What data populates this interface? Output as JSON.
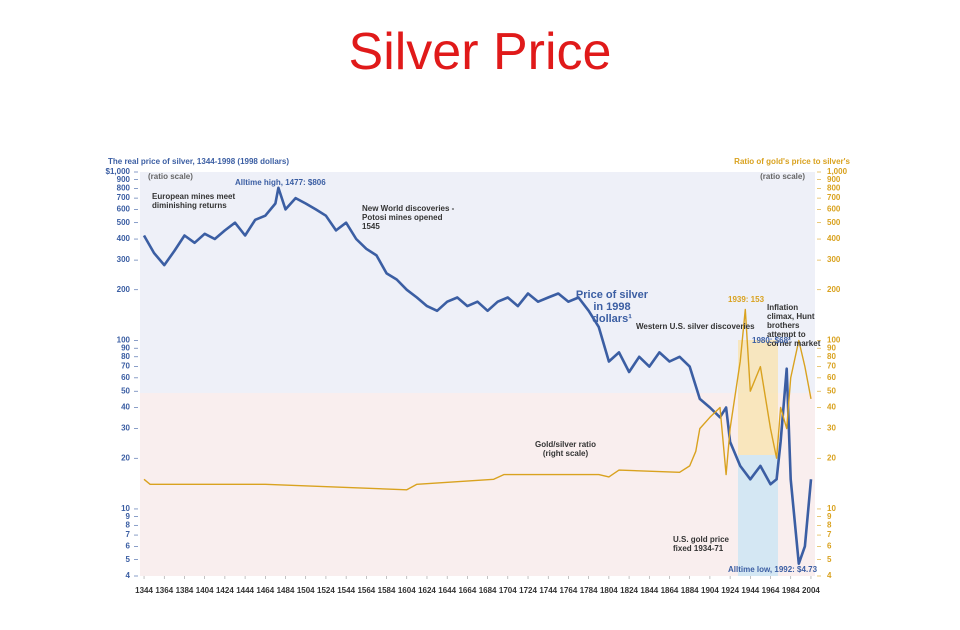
{
  "title": "Silver Price",
  "chart_data": {
    "type": "line",
    "y_label": "The real price of silver, 1344-1998 (1998 dollars)",
    "y2_label": "Ratio of gold's price to silver's",
    "y_scale_note": "(ratio scale)",
    "y2_scale_note": "(ratio scale)",
    "log_scale": true,
    "xlim": [
      1340,
      2008
    ],
    "xticks": [
      1344,
      1364,
      1384,
      1404,
      1424,
      1444,
      1464,
      1484,
      1504,
      1524,
      1544,
      1564,
      1584,
      1604,
      1624,
      1644,
      1664,
      1684,
      1704,
      1724,
      1744,
      1764,
      1784,
      1804,
      1824,
      1844,
      1864,
      1884,
      1904,
      1924,
      1944,
      1964,
      1984,
      2004
    ],
    "ylim": [
      4,
      1000
    ],
    "yticks": [
      {
        "value": 1000,
        "label": "$1,000"
      },
      900,
      800,
      700,
      600,
      500,
      400,
      300,
      200,
      100,
      90,
      80,
      70,
      60,
      50,
      40,
      30,
      20,
      10,
      9,
      8,
      7,
      6,
      5,
      4
    ],
    "y2lim": [
      4,
      1000
    ],
    "y2ticks": [
      {
        "value": 1000,
        "label": "1,000"
      },
      900,
      800,
      700,
      600,
      500,
      400,
      300,
      200,
      100,
      90,
      80,
      70,
      60,
      50,
      40,
      30,
      20,
      10,
      9,
      8,
      7,
      6,
      5,
      4
    ],
    "series": [
      {
        "name": "Price of silver in 1998 dollars¹",
        "color": "#3b5ea3",
        "x": [
          1344,
          1354,
          1364,
          1374,
          1384,
          1394,
          1404,
          1414,
          1424,
          1434,
          1444,
          1454,
          1464,
          1474,
          1477,
          1484,
          1494,
          1504,
          1514,
          1524,
          1534,
          1544,
          1554,
          1564,
          1574,
          1584,
          1594,
          1604,
          1614,
          1624,
          1634,
          1644,
          1654,
          1664,
          1674,
          1684,
          1694,
          1704,
          1714,
          1724,
          1734,
          1744,
          1754,
          1764,
          1774,
          1784,
          1794,
          1804,
          1814,
          1824,
          1834,
          1844,
          1854,
          1864,
          1874,
          1884,
          1894,
          1904,
          1914,
          1920,
          1924,
          1934,
          1944,
          1954,
          1964,
          1970,
          1974,
          1980,
          1984,
          1992,
          1998,
          2004
        ],
        "values": [
          420,
          330,
          280,
          340,
          420,
          380,
          430,
          400,
          450,
          500,
          420,
          520,
          550,
          650,
          806,
          600,
          700,
          650,
          600,
          550,
          450,
          500,
          400,
          350,
          320,
          250,
          230,
          200,
          180,
          160,
          150,
          170,
          180,
          160,
          170,
          150,
          170,
          180,
          160,
          190,
          170,
          180,
          190,
          170,
          180,
          150,
          120,
          75,
          85,
          65,
          80,
          70,
          85,
          75,
          80,
          70,
          45,
          40,
          35,
          40,
          25,
          18,
          15,
          18,
          14,
          15,
          25,
          68,
          15,
          4.73,
          6,
          15
        ]
      },
      {
        "name": "Gold/silver ratio (right scale)",
        "color": "#d9a21f",
        "axis": "y2",
        "x": [
          1344,
          1350,
          1464,
          1604,
          1614,
          1690,
          1700,
          1794,
          1804,
          1814,
          1874,
          1884,
          1890,
          1894,
          1904,
          1914,
          1920,
          1924,
          1934,
          1939,
          1944,
          1954,
          1964,
          1970,
          1974,
          1980,
          1984,
          1992,
          1998,
          2004
        ],
        "values": [
          15,
          14,
          14,
          13,
          14,
          15,
          16,
          16,
          15.5,
          17,
          16.5,
          18,
          22,
          30,
          35,
          40,
          16,
          30,
          75,
          153,
          50,
          70,
          30,
          20,
          40,
          30,
          60,
          100,
          70,
          45
        ]
      }
    ],
    "annotations": [
      "European mines meet diminishing returns",
      "Alltime high, 1477: $806",
      "New World discoveries - Potosi mines opened 1545",
      "Western U.S. silver discoveries",
      "1939: 153",
      "Inflation climax, Hunt brothers attempt to corner market",
      "1980: $68²",
      "U.S. gold price fixed 1934-71",
      "Alltime low, 1992: $4.73"
    ]
  }
}
